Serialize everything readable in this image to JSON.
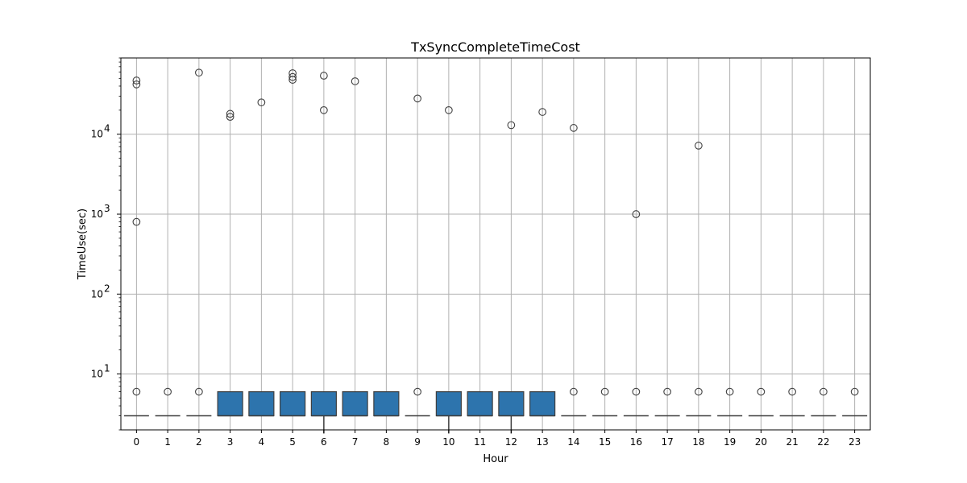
{
  "chart_data": {
    "type": "box",
    "title": "TxSyncCompleteTimeCost",
    "xlabel": "Hour",
    "ylabel": "TimeUse(sec)",
    "yscale": "log",
    "ylim": [
      2,
      90000
    ],
    "y_ticks": [
      {
        "value": 10,
        "base": "10",
        "exp": "1"
      },
      {
        "value": 100,
        "base": "10",
        "exp": "2"
      },
      {
        "value": 1000,
        "base": "10",
        "exp": "3"
      },
      {
        "value": 10000,
        "base": "10",
        "exp": "4"
      }
    ],
    "grid": true,
    "box_color": "#2d74ad",
    "categories": [
      "0",
      "1",
      "2",
      "3",
      "4",
      "5",
      "6",
      "7",
      "8",
      "9",
      "10",
      "11",
      "12",
      "13",
      "14",
      "15",
      "16",
      "17",
      "18",
      "19",
      "20",
      "21",
      "22",
      "23"
    ],
    "boxes": [
      {
        "hour": "0",
        "q1": 3,
        "median": 3,
        "q3": 3,
        "whisker_low": 3,
        "whisker_high": 3,
        "fliers": [
          6,
          800,
          42000,
          47000
        ]
      },
      {
        "hour": "1",
        "q1": 3,
        "median": 3,
        "q3": 3,
        "whisker_low": 3,
        "whisker_high": 3,
        "fliers": [
          6
        ]
      },
      {
        "hour": "2",
        "q1": 3,
        "median": 3,
        "q3": 3,
        "whisker_low": 3,
        "whisker_high": 3,
        "fliers": [
          6,
          59000
        ]
      },
      {
        "hour": "3",
        "q1": 3,
        "median": 3,
        "q3": 6,
        "whisker_low": 3,
        "whisker_high": 6,
        "fliers": [
          16500,
          18000
        ]
      },
      {
        "hour": "4",
        "q1": 3,
        "median": 3,
        "q3": 6,
        "whisker_low": 3,
        "whisker_high": 6,
        "fliers": [
          25000
        ]
      },
      {
        "hour": "5",
        "q1": 3,
        "median": 3,
        "q3": 6,
        "whisker_low": 3,
        "whisker_high": 6,
        "fliers": [
          48000,
          52000,
          58000
        ]
      },
      {
        "hour": "6",
        "q1": 3,
        "median": 3,
        "q3": 6,
        "whisker_low": 1.8,
        "whisker_high": 6,
        "fliers": [
          20000,
          54000
        ]
      },
      {
        "hour": "7",
        "q1": 3,
        "median": 3,
        "q3": 6,
        "whisker_low": 3,
        "whisker_high": 6,
        "fliers": [
          46000
        ]
      },
      {
        "hour": "8",
        "q1": 3,
        "median": 3,
        "q3": 6,
        "whisker_low": 3,
        "whisker_high": 6,
        "fliers": []
      },
      {
        "hour": "9",
        "q1": 3,
        "median": 3,
        "q3": 3,
        "whisker_low": 3,
        "whisker_high": 3,
        "fliers": [
          6,
          28000
        ]
      },
      {
        "hour": "10",
        "q1": 3,
        "median": 3,
        "q3": 6,
        "whisker_low": 1.8,
        "whisker_high": 6,
        "fliers": [
          20000
        ]
      },
      {
        "hour": "11",
        "q1": 3,
        "median": 3,
        "q3": 6,
        "whisker_low": 3,
        "whisker_high": 6,
        "fliers": []
      },
      {
        "hour": "12",
        "q1": 3,
        "median": 3,
        "q3": 6,
        "whisker_low": 1.8,
        "whisker_high": 6,
        "fliers": [
          13000
        ]
      },
      {
        "hour": "13",
        "q1": 3,
        "median": 3,
        "q3": 6,
        "whisker_low": 3,
        "whisker_high": 6,
        "fliers": [
          19000
        ]
      },
      {
        "hour": "14",
        "q1": 3,
        "median": 3,
        "q3": 3,
        "whisker_low": 3,
        "whisker_high": 3,
        "fliers": [
          6,
          12000
        ]
      },
      {
        "hour": "15",
        "q1": 3,
        "median": 3,
        "q3": 3,
        "whisker_low": 3,
        "whisker_high": 3,
        "fliers": [
          6
        ]
      },
      {
        "hour": "16",
        "q1": 3,
        "median": 3,
        "q3": 3,
        "whisker_low": 3,
        "whisker_high": 3,
        "fliers": [
          6,
          1000
        ]
      },
      {
        "hour": "17",
        "q1": 3,
        "median": 3,
        "q3": 3,
        "whisker_low": 3,
        "whisker_high": 3,
        "fliers": [
          6
        ]
      },
      {
        "hour": "18",
        "q1": 3,
        "median": 3,
        "q3": 3,
        "whisker_low": 3,
        "whisker_high": 3,
        "fliers": [
          6,
          7200
        ]
      },
      {
        "hour": "19",
        "q1": 3,
        "median": 3,
        "q3": 3,
        "whisker_low": 3,
        "whisker_high": 3,
        "fliers": [
          6
        ]
      },
      {
        "hour": "20",
        "q1": 3,
        "median": 3,
        "q3": 3,
        "whisker_low": 3,
        "whisker_high": 3,
        "fliers": [
          6
        ]
      },
      {
        "hour": "21",
        "q1": 3,
        "median": 3,
        "q3": 3,
        "whisker_low": 3,
        "whisker_high": 3,
        "fliers": [
          6
        ]
      },
      {
        "hour": "22",
        "q1": 3,
        "median": 3,
        "q3": 3,
        "whisker_low": 3,
        "whisker_high": 3,
        "fliers": [
          6
        ]
      },
      {
        "hour": "23",
        "q1": 3,
        "median": 3,
        "q3": 3,
        "whisker_low": 3,
        "whisker_high": 3,
        "fliers": [
          6
        ]
      }
    ]
  }
}
